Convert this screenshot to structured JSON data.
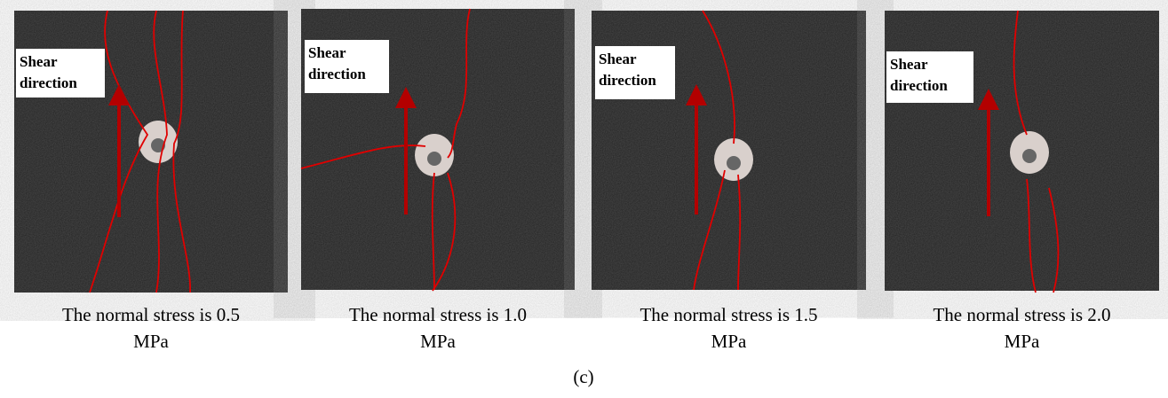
{
  "figure": {
    "panels": [
      {
        "annotation": [
          "Shear",
          "direction"
        ],
        "caption": [
          "The normal stress is 0.5",
          "MPa"
        ]
      },
      {
        "annotation": [
          "Shear",
          "direction"
        ],
        "caption": [
          "The normal stress is 1.0",
          "MPa"
        ]
      },
      {
        "annotation": [
          "Shear",
          "direction"
        ],
        "caption": [
          "The normal stress is 1.5",
          "MPa"
        ]
      },
      {
        "annotation": [
          "Shear",
          "direction"
        ],
        "caption": [
          "The normal stress is 2.0",
          "MPa"
        ]
      }
    ],
    "subfigure_label": "(c)"
  }
}
